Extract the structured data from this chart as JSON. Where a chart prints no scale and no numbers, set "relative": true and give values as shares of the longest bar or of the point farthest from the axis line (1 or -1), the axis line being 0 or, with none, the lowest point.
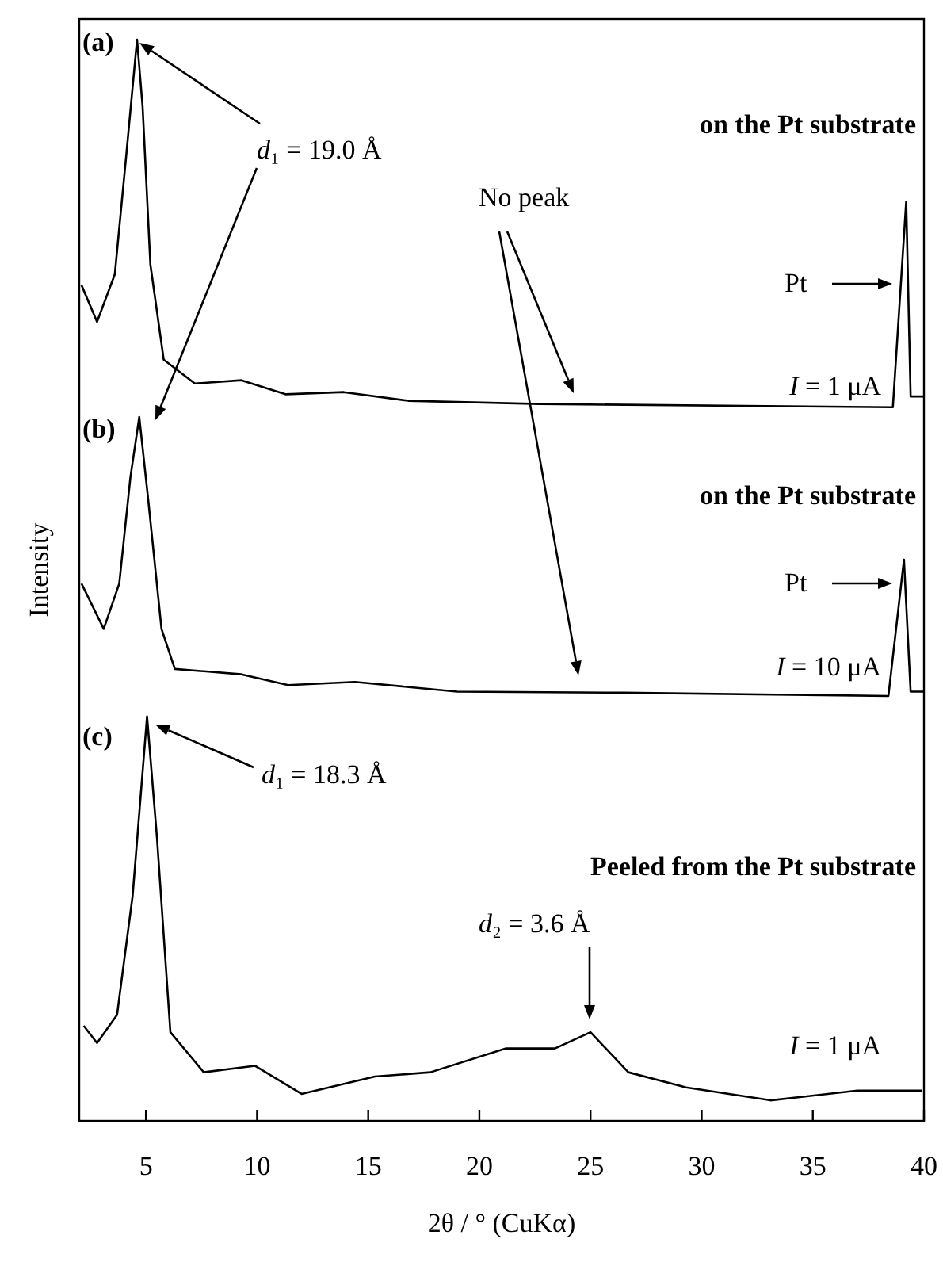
{
  "chart_data": {
    "type": "line",
    "relative": true,
    "xlabel": "2θ / °  (CuKα)",
    "ylabel": "Intensity",
    "xlim": [
      2,
      40
    ],
    "xticks": [
      5,
      10,
      15,
      20,
      25,
      30,
      35,
      40
    ],
    "series": [
      {
        "color": "#000000",
        "x": [
          2.1,
          2.8,
          3.6,
          4.1,
          4.6,
          4.85,
          5.2,
          5.8,
          7.2,
          9.3,
          11.3,
          13.9,
          16.8,
          22.7,
          38.6,
          39.2,
          39.4,
          40
        ],
        "values": [
          0.773,
          0.739,
          0.783,
          0.89,
          1,
          0.938,
          0.792,
          0.704,
          0.682,
          0.685,
          0.672,
          0.674,
          0.666,
          0.663,
          0.66,
          0.85,
          0.67,
          0.67
        ]
      },
      {
        "color": "#000000",
        "x": [
          2.1,
          3.1,
          3.8,
          4.3,
          4.7,
          5.1,
          5.7,
          6.3,
          9.3,
          11.4,
          14.4,
          19.0,
          26.5,
          38.4,
          39.1,
          39.4,
          40
        ],
        "values": [
          0.497,
          0.455,
          0.497,
          0.595,
          0.651,
          0.575,
          0.455,
          0.418,
          0.413,
          0.403,
          0.406,
          0.397,
          0.396,
          0.393,
          0.519,
          0.397,
          0.397
        ]
      },
      {
        "color": "#000000",
        "x": [
          2.2,
          2.8,
          3.7,
          4.4,
          5.05,
          5.5,
          6.1,
          7.6,
          9.9,
          12.0,
          15.3,
          17.8,
          21.2,
          23.4,
          25.0,
          26.7,
          29.3,
          33.1,
          37.0,
          39.9
        ],
        "values": [
          0.088,
          0.072,
          0.098,
          0.208,
          0.374,
          0.261,
          0.082,
          0.045,
          0.051,
          0.025,
          0.041,
          0.045,
          0.067,
          0.067,
          0.082,
          0.045,
          0.031,
          0.019,
          0.028,
          0.028
        ]
      }
    ],
    "annotations": [
      "(a)",
      "d₁ = 19.0 Å",
      "on the Pt  substrate",
      "No peak",
      "Pt",
      "I = 1 μA",
      "(b)",
      "on the Pt  substrate",
      "Pt",
      "I = 10 μA",
      "(c)",
      "d₁ = 18.3 Å",
      "Peeled from the  Pt  substrate",
      "d₂ = 3.6 Å",
      "I = 1 μA"
    ]
  }
}
